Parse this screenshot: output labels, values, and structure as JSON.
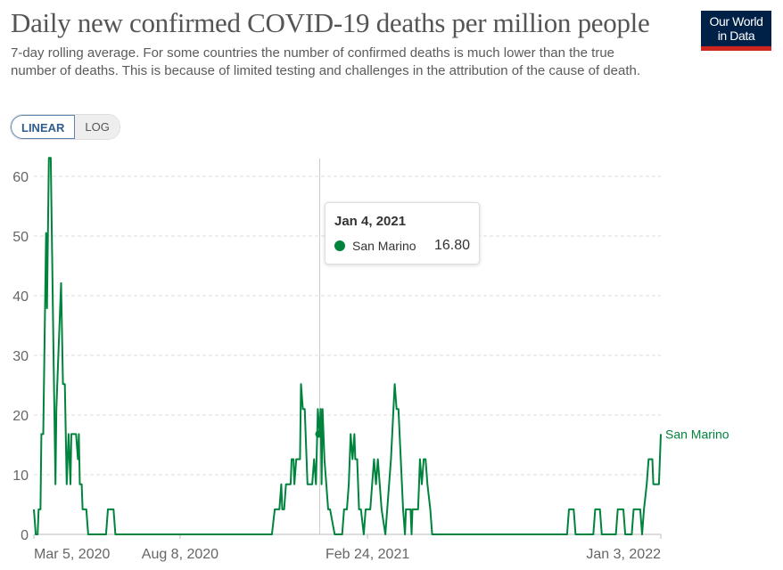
{
  "header": {
    "title": "Daily new confirmed COVID-19 deaths per million people",
    "subtitle": "7-day rolling average. For some countries the number of confirmed deaths is much lower than the true number of deaths. This is because of limited testing and challenges in the attribution of the cause of death.",
    "logo_line1": "Our World",
    "logo_line2": "in Data"
  },
  "controls": {
    "linear_label": "LINEAR",
    "log_label": "LOG",
    "selected": "LINEAR"
  },
  "tooltip": {
    "date": "Jan 4, 2021",
    "series": "San Marino",
    "value": "16.80"
  },
  "colors": {
    "series": "#00843d",
    "logo_bg": "#002147",
    "logo_bar": "#ce261e"
  },
  "chart_data": {
    "type": "line",
    "title": "Daily new confirmed COVID-19 deaths per million people",
    "xlabel": "",
    "ylabel": "",
    "ylim": [
      0,
      63
    ],
    "xlim": [
      "2020-03-05",
      "2022-01-03"
    ],
    "yticks": [
      0,
      10,
      20,
      30,
      40,
      50,
      60
    ],
    "xticks": [
      {
        "date": "2020-03-05",
        "label": "Mar 5, 2020"
      },
      {
        "date": "2020-08-08",
        "label": "Aug 8, 2020"
      },
      {
        "date": "2021-02-24",
        "label": "Feb 24, 2021"
      },
      {
        "date": "2022-01-03",
        "label": "Jan 3, 2022"
      }
    ],
    "grid": "horizontal dashed",
    "series": [
      {
        "name": "San Marino",
        "points": [
          [
            "2020-03-05",
            4.2
          ],
          [
            "2020-03-07",
            0
          ],
          [
            "2020-03-09",
            0
          ],
          [
            "2020-03-10",
            4.2
          ],
          [
            "2020-03-12",
            4.2
          ],
          [
            "2020-03-13",
            16.8
          ],
          [
            "2020-03-15",
            16.8
          ],
          [
            "2020-03-18",
            50.5
          ],
          [
            "2020-03-19",
            37.9
          ],
          [
            "2020-03-21",
            63.1
          ],
          [
            "2020-03-23",
            63.1
          ],
          [
            "2020-03-26",
            29.5
          ],
          [
            "2020-03-28",
            8.4
          ],
          [
            "2020-03-29",
            21
          ],
          [
            "2020-03-31",
            29.5
          ],
          [
            "2020-04-03",
            42.1
          ],
          [
            "2020-04-05",
            25.2
          ],
          [
            "2020-04-07",
            25.2
          ],
          [
            "2020-04-09",
            8.4
          ],
          [
            "2020-04-11",
            16.8
          ],
          [
            "2020-04-13",
            8.4
          ],
          [
            "2020-04-14",
            16.8
          ],
          [
            "2020-04-19",
            16.8
          ],
          [
            "2020-04-21",
            12.6
          ],
          [
            "2020-04-22",
            16.8
          ],
          [
            "2020-04-23",
            8.4
          ],
          [
            "2020-04-25",
            8.4
          ],
          [
            "2020-04-26",
            4.2
          ],
          [
            "2020-04-30",
            4.2
          ],
          [
            "2020-05-02",
            0
          ],
          [
            "2020-05-21",
            0
          ],
          [
            "2020-05-23",
            4.2
          ],
          [
            "2020-05-29",
            4.2
          ],
          [
            "2020-05-31",
            0
          ],
          [
            "2020-11-14",
            0
          ],
          [
            "2020-11-17",
            4.2
          ],
          [
            "2020-11-22",
            4.2
          ],
          [
            "2020-11-24",
            8.4
          ],
          [
            "2020-11-25",
            4.2
          ],
          [
            "2020-11-27",
            4.2
          ],
          [
            "2020-11-29",
            8.4
          ],
          [
            "2020-12-04",
            8.4
          ],
          [
            "2020-12-05",
            12.6
          ],
          [
            "2020-12-07",
            12.6
          ],
          [
            "2020-12-08",
            8.4
          ],
          [
            "2020-12-10",
            12.6
          ],
          [
            "2020-12-14",
            12.6
          ],
          [
            "2020-12-15",
            25.2
          ],
          [
            "2020-12-17",
            21
          ],
          [
            "2020-12-19",
            21
          ],
          [
            "2020-12-22",
            8.4
          ],
          [
            "2020-12-27",
            8.4
          ],
          [
            "2020-12-29",
            12.6
          ],
          [
            "2020-12-31",
            8.4
          ],
          [
            "2021-01-02",
            21
          ],
          [
            "2021-01-04",
            16.8
          ],
          [
            "2021-01-05",
            21
          ],
          [
            "2021-01-06",
            8.4
          ],
          [
            "2021-01-07",
            21
          ],
          [
            "2021-01-09",
            12.6
          ],
          [
            "2021-01-11",
            8.4
          ],
          [
            "2021-01-13",
            4.2
          ],
          [
            "2021-01-15",
            4.2
          ],
          [
            "2021-01-20",
            0
          ],
          [
            "2021-01-28",
            0
          ],
          [
            "2021-01-30",
            4.2
          ],
          [
            "2021-02-02",
            4.2
          ],
          [
            "2021-02-04",
            8.4
          ],
          [
            "2021-02-06",
            16.8
          ],
          [
            "2021-02-08",
            12.6
          ],
          [
            "2021-02-10",
            16.8
          ],
          [
            "2021-02-11",
            12.6
          ],
          [
            "2021-02-13",
            12.6
          ],
          [
            "2021-02-15",
            4.2
          ],
          [
            "2021-02-17",
            4.2
          ],
          [
            "2021-02-20",
            0
          ],
          [
            "2021-02-22",
            4.2
          ],
          [
            "2021-02-27",
            4.2
          ],
          [
            "2021-03-01",
            8.4
          ],
          [
            "2021-03-03",
            12.6
          ],
          [
            "2021-03-05",
            8.4
          ],
          [
            "2021-03-07",
            12.6
          ],
          [
            "2021-03-09",
            8.4
          ],
          [
            "2021-03-11",
            4.2
          ],
          [
            "2021-03-15",
            0
          ],
          [
            "2021-03-17",
            4.2
          ],
          [
            "2021-03-21",
            12.6
          ],
          [
            "2021-03-25",
            25.2
          ],
          [
            "2021-03-27",
            21
          ],
          [
            "2021-03-29",
            21
          ],
          [
            "2021-04-03",
            4.2
          ],
          [
            "2021-04-05",
            0
          ],
          [
            "2021-04-06",
            4.2
          ],
          [
            "2021-04-11",
            4.2
          ],
          [
            "2021-04-12",
            0
          ],
          [
            "2021-04-13",
            4.2
          ],
          [
            "2021-04-19",
            4.2
          ],
          [
            "2021-04-20",
            8.4
          ],
          [
            "2021-04-21",
            12.6
          ],
          [
            "2021-04-23",
            8.4
          ],
          [
            "2021-04-25",
            12.6
          ],
          [
            "2021-04-27",
            12.6
          ],
          [
            "2021-04-29",
            8.4
          ],
          [
            "2021-05-02",
            4.2
          ],
          [
            "2021-05-04",
            0
          ],
          [
            "2021-09-25",
            0
          ],
          [
            "2021-09-27",
            4.2
          ],
          [
            "2021-10-02",
            4.2
          ],
          [
            "2021-10-04",
            0
          ],
          [
            "2021-10-23",
            0
          ],
          [
            "2021-10-25",
            4.2
          ],
          [
            "2021-10-30",
            4.2
          ],
          [
            "2021-11-01",
            0
          ],
          [
            "2021-11-16",
            0
          ],
          [
            "2021-11-18",
            4.2
          ],
          [
            "2021-11-24",
            4.2
          ],
          [
            "2021-11-26",
            0
          ],
          [
            "2021-12-03",
            0
          ],
          [
            "2021-12-05",
            4.2
          ],
          [
            "2021-12-12",
            4.2
          ],
          [
            "2021-12-14",
            0
          ],
          [
            "2021-12-16",
            4.2
          ],
          [
            "2021-12-19",
            8.4
          ],
          [
            "2021-12-21",
            12.6
          ],
          [
            "2021-12-25",
            12.6
          ],
          [
            "2021-12-26",
            8.4
          ],
          [
            "2022-01-01",
            8.4
          ],
          [
            "2022-01-03",
            16.8
          ]
        ]
      }
    ],
    "highlight": {
      "date": "2021-01-04",
      "value": 16.8
    }
  }
}
